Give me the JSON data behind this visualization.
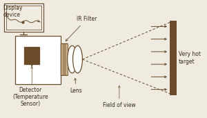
{
  "bg_color": "#f0ebe0",
  "line_color": "#6b4c2a",
  "text_color": "#3a2a18",
  "labels": {
    "display_device": "Display\ndevice",
    "ir_filter": "IR Filter",
    "detector": "Detector\n(Temperature\nSensor)",
    "lens": "Lens",
    "field_of_view": "Field of view",
    "very_hot_target": "Very hot\ntarget"
  },
  "figsize": [
    3.0,
    1.71
  ],
  "dpi": 100
}
